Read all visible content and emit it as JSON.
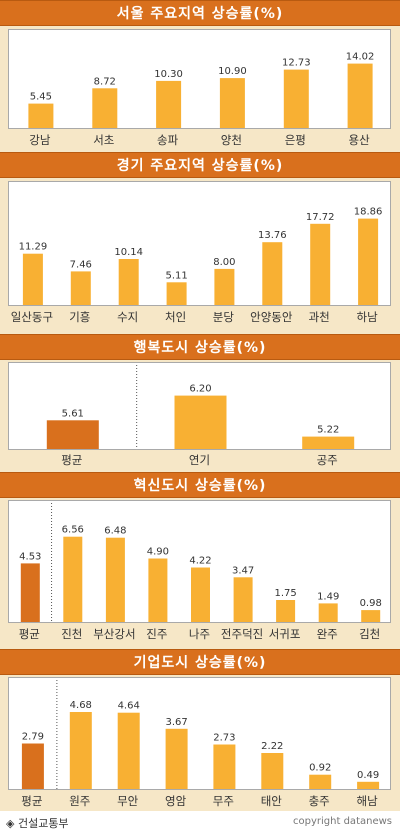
{
  "colors": {
    "header_bg": "#d9701d",
    "band_bg": "#f6e7c7",
    "bar": "#f8b033",
    "bar_highlight": "#d9701d"
  },
  "footer": {
    "source": "◈ 건설교통부",
    "copyright": "copyright datanews"
  },
  "chart_data": [
    {
      "type": "bar",
      "title": "서울 주요지역 상승률(%)",
      "categories": [
        "강남",
        "서초",
        "송파",
        "양천",
        "은평",
        "용산"
      ],
      "values": [
        5.45,
        8.72,
        10.3,
        10.9,
        12.73,
        14.02
      ],
      "value_labels": [
        "5.45",
        "8.72",
        "10.30",
        "10.90",
        "12.73",
        "14.02"
      ],
      "highlight_index": -1,
      "ylim": [
        0,
        16.5
      ]
    },
    {
      "type": "bar",
      "title": "경기 주요지역 상승률(%)",
      "categories": [
        "일산동구",
        "기흥",
        "수지",
        "처인",
        "분당",
        "안양동안",
        "과천",
        "하남"
      ],
      "values": [
        11.29,
        7.46,
        10.14,
        5.11,
        8.0,
        13.76,
        17.72,
        18.86
      ],
      "value_labels": [
        "11.29",
        "7.46",
        "10.14",
        "5.11",
        "8.00",
        "13.76",
        "17.72",
        "18.86"
      ],
      "highlight_index": -1,
      "ylim": [
        0,
        22
      ]
    },
    {
      "type": "bar",
      "title": "행복도시 상승률(%)",
      "categories": [
        "평균",
        "연기",
        "공주"
      ],
      "values": [
        5.61,
        6.2,
        5.22
      ],
      "value_labels": [
        "5.61",
        "6.20",
        "5.22"
      ],
      "highlight_index": 0,
      "ylim": [
        4.9,
        6.5
      ]
    },
    {
      "type": "bar",
      "title": "혁신도시 상승률(%)",
      "categories": [
        "평균",
        "진천",
        "부산강서",
        "진주",
        "나주",
        "전주덕진",
        "서귀포",
        "완주",
        "김천"
      ],
      "values": [
        4.53,
        6.56,
        6.48,
        4.9,
        4.22,
        3.47,
        1.75,
        1.49,
        0.98
      ],
      "value_labels": [
        "4.53",
        "6.56",
        "6.48",
        "4.90",
        "4.22",
        "3.47",
        "1.75",
        "1.49",
        "0.98"
      ],
      "highlight_index": 0,
      "ylim": [
        0,
        7.6
      ]
    },
    {
      "type": "bar",
      "title": "기업도시 상승률(%)",
      "categories": [
        "평균",
        "원주",
        "무안",
        "영암",
        "무주",
        "태안",
        "충주",
        "해남"
      ],
      "values": [
        2.79,
        4.68,
        4.64,
        3.67,
        2.73,
        2.22,
        0.92,
        0.49
      ],
      "value_labels": [
        "2.79",
        "4.68",
        "4.64",
        "3.67",
        "2.73",
        "2.22",
        "0.92",
        "0.49"
      ],
      "highlight_index": 0,
      "ylim": [
        0,
        5.4
      ]
    }
  ]
}
